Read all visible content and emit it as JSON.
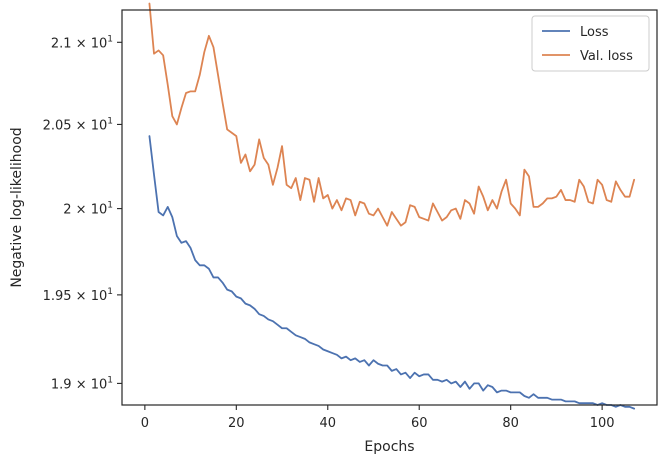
{
  "chart_data": {
    "type": "line",
    "title": "",
    "xlabel": "Epochs",
    "ylabel": "Negative log-likelihood",
    "xlim": [
      -5,
      112
    ],
    "ylim": [
      18.88,
      21.2
    ],
    "y_scale": "log",
    "x_ticks": [
      0,
      20,
      40,
      60,
      80,
      100
    ],
    "x_tick_labels": [
      "0",
      "20",
      "40",
      "60",
      "80",
      "100"
    ],
    "y_ticks": [
      19.0,
      19.5,
      20.0,
      20.5,
      21.0
    ],
    "y_tick_labels": [
      {
        "mantissa": "1.9",
        "base": "10",
        "exp": "1"
      },
      {
        "mantissa": "1.95",
        "base": "10",
        "exp": "1"
      },
      {
        "mantissa": "2",
        "base": "10",
        "exp": "1"
      },
      {
        "mantissa": "2.05",
        "base": "10",
        "exp": "1"
      },
      {
        "mantissa": "2.1",
        "base": "10",
        "exp": "1"
      }
    ],
    "legend_position": "top-right",
    "grid": false,
    "series": [
      {
        "name": "Loss",
        "color": "#4c72b0",
        "x": [
          1,
          2,
          3,
          4,
          5,
          6,
          7,
          8,
          9,
          10,
          11,
          12,
          13,
          14,
          15,
          16,
          17,
          18,
          19,
          20,
          21,
          22,
          23,
          24,
          25,
          26,
          27,
          28,
          29,
          30,
          31,
          32,
          33,
          34,
          35,
          36,
          37,
          38,
          39,
          40,
          41,
          42,
          43,
          44,
          45,
          46,
          47,
          48,
          49,
          50,
          51,
          52,
          53,
          54,
          55,
          56,
          57,
          58,
          59,
          60,
          61,
          62,
          63,
          64,
          65,
          66,
          67,
          68,
          69,
          70,
          71,
          72,
          73,
          74,
          75,
          76,
          77,
          78,
          79,
          80,
          81,
          82,
          83,
          84,
          85,
          86,
          87,
          88,
          89,
          90,
          91,
          92,
          93,
          94,
          95,
          96,
          97,
          98,
          99,
          100,
          101,
          102,
          103,
          104,
          105,
          106,
          107
        ],
        "y": [
          20.43,
          20.2,
          19.98,
          19.96,
          20.01,
          19.95,
          19.84,
          19.8,
          19.81,
          19.77,
          19.7,
          19.67,
          19.67,
          19.65,
          19.6,
          19.6,
          19.57,
          19.53,
          19.52,
          19.49,
          19.48,
          19.45,
          19.44,
          19.42,
          19.39,
          19.38,
          19.36,
          19.35,
          19.33,
          19.31,
          19.31,
          19.29,
          19.27,
          19.26,
          19.25,
          19.23,
          19.22,
          19.21,
          19.19,
          19.18,
          19.17,
          19.16,
          19.14,
          19.15,
          19.13,
          19.14,
          19.12,
          19.13,
          19.1,
          19.13,
          19.11,
          19.1,
          19.1,
          19.07,
          19.08,
          19.05,
          19.06,
          19.03,
          19.06,
          19.04,
          19.05,
          19.05,
          19.02,
          19.02,
          19.01,
          19.02,
          19.0,
          19.01,
          18.98,
          19.01,
          18.97,
          19.0,
          19.0,
          18.96,
          18.99,
          18.98,
          18.95,
          18.96,
          18.96,
          18.95,
          18.95,
          18.95,
          18.93,
          18.92,
          18.94,
          18.92,
          18.92,
          18.92,
          18.91,
          18.91,
          18.91,
          18.9,
          18.9,
          18.9,
          18.89,
          18.89,
          18.89,
          18.89,
          18.88,
          18.89,
          18.88,
          18.88,
          18.87,
          18.88,
          18.87,
          18.87,
          18.86
        ]
      },
      {
        "name": "Val. loss",
        "color": "#dd8452",
        "x": [
          1,
          2,
          3,
          4,
          5,
          6,
          7,
          8,
          9,
          10,
          11,
          12,
          13,
          14,
          15,
          16,
          17,
          18,
          19,
          20,
          21,
          22,
          23,
          24,
          25,
          26,
          27,
          28,
          29,
          30,
          31,
          32,
          33,
          34,
          35,
          36,
          37,
          38,
          39,
          40,
          41,
          42,
          43,
          44,
          45,
          46,
          47,
          48,
          49,
          50,
          51,
          52,
          53,
          54,
          55,
          56,
          57,
          58,
          59,
          60,
          61,
          62,
          63,
          64,
          65,
          66,
          67,
          68,
          69,
          70,
          71,
          72,
          73,
          74,
          75,
          76,
          77,
          78,
          79,
          80,
          81,
          82,
          83,
          84,
          85,
          86,
          87,
          88,
          89,
          90,
          91,
          92,
          93,
          94,
          95,
          96,
          97,
          98,
          99,
          100,
          101,
          102,
          103,
          104,
          105,
          106,
          107
        ],
        "y": [
          21.24,
          20.93,
          20.95,
          20.92,
          20.74,
          20.55,
          20.5,
          20.6,
          20.69,
          20.7,
          20.7,
          20.8,
          20.94,
          21.04,
          20.97,
          20.8,
          20.63,
          20.47,
          20.45,
          20.43,
          20.27,
          20.32,
          20.22,
          20.26,
          20.41,
          20.3,
          20.26,
          20.14,
          20.24,
          20.37,
          20.14,
          20.12,
          20.18,
          20.05,
          20.18,
          20.17,
          20.04,
          20.18,
          20.06,
          20.08,
          20.0,
          20.05,
          19.99,
          20.06,
          20.05,
          19.96,
          20.04,
          20.03,
          19.97,
          19.96,
          20.0,
          19.95,
          19.9,
          19.98,
          19.94,
          19.9,
          19.92,
          20.02,
          20.01,
          19.95,
          19.94,
          19.93,
          20.03,
          19.98,
          19.93,
          19.95,
          19.99,
          20.0,
          19.94,
          20.05,
          20.03,
          19.97,
          20.13,
          20.07,
          19.99,
          20.05,
          20.0,
          20.1,
          20.17,
          20.03,
          20.0,
          19.96,
          20.23,
          20.19,
          20.01,
          20.01,
          20.03,
          20.06,
          20.06,
          20.07,
          20.11,
          20.05,
          20.05,
          20.04,
          20.17,
          20.13,
          20.04,
          20.03,
          20.17,
          20.14,
          20.05,
          20.04,
          20.16,
          20.11,
          20.07,
          20.07,
          20.17
        ]
      }
    ]
  }
}
